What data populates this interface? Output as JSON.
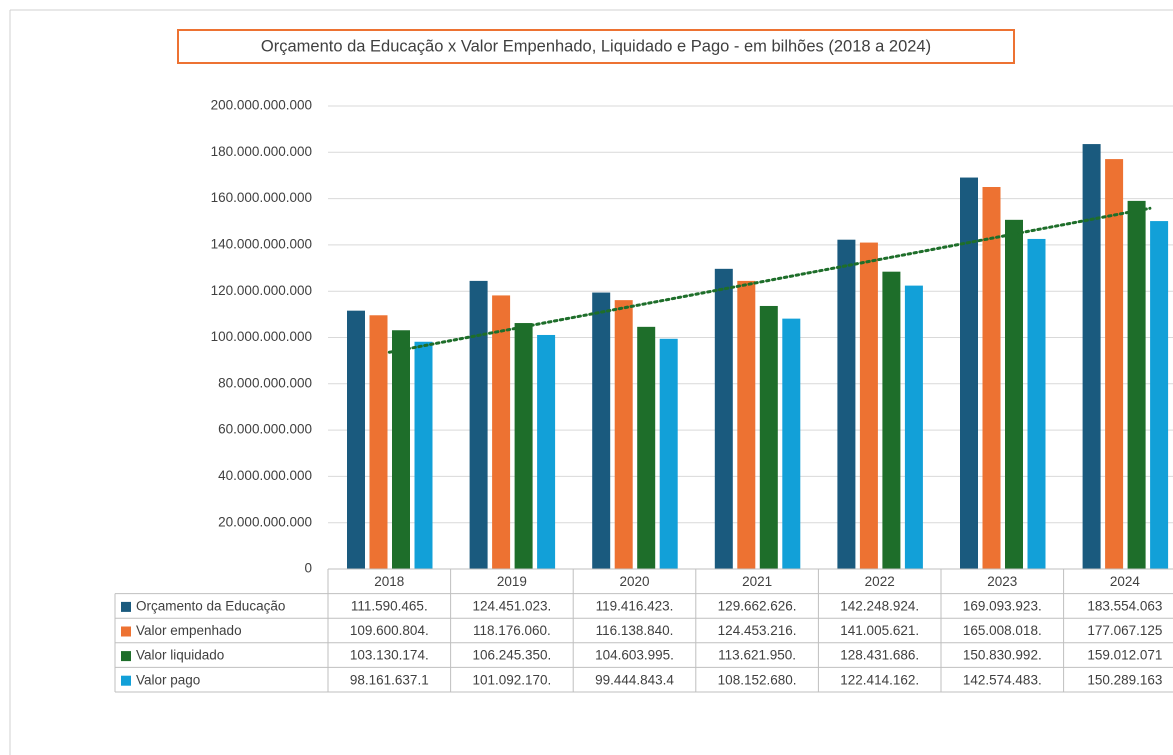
{
  "chart_data": {
    "type": "bar",
    "title": "Orçamento da Educação x Valor Empenhado, Liquidado e Pago - em bilhões (2018 a 2024)",
    "categories": [
      "2018",
      "2019",
      "2020",
      "2021",
      "2022",
      "2023",
      "2024"
    ],
    "series": [
      {
        "name": "Orçamento da Educação",
        "color": "#1a5a7e",
        "values": [
          111590465000,
          124451023000,
          119416423000,
          129662626000,
          142248924000,
          169093923000,
          183554063000
        ],
        "value_labels": [
          "111.590.465.",
          "124.451.023.",
          "119.416.423.",
          "129.662.626.",
          "142.248.924.",
          "169.093.923.",
          "183.554.063"
        ]
      },
      {
        "name": "Valor empenhado",
        "color": "#ed7232",
        "values": [
          109600804000,
          118176060000,
          116138840000,
          124453216000,
          141005621000,
          165008018000,
          177067125000
        ],
        "value_labels": [
          "109.600.804.",
          "118.176.060.",
          "116.138.840.",
          "124.453.216.",
          "141.005.621.",
          "165.008.018.",
          "177.067.125"
        ]
      },
      {
        "name": "Valor liquidado",
        "color": "#1e6e2a",
        "values": [
          103130174000,
          106245350000,
          104603995000,
          113621950000,
          128431686000,
          150830992000,
          159012071000
        ],
        "value_labels": [
          "103.130.174.",
          "106.245.350.",
          "104.603.995.",
          "113.621.950.",
          "128.431.686.",
          "150.830.992.",
          "159.012.071"
        ]
      },
      {
        "name": "Valor pago",
        "color": "#12a0d8",
        "values": [
          98161637100,
          101092170000,
          99444843400,
          108152680000,
          122414162000,
          142574483000,
          150289163000
        ],
        "value_labels": [
          "98.161.637.1",
          "101.092.170.",
          "99.444.843.4",
          "108.152.680.",
          "122.414.162.",
          "142.574.483.",
          "150.289.163"
        ]
      }
    ],
    "ylim": [
      0,
      200000000000
    ],
    "yticks": [
      0,
      {
        "value": 20000000000,
        "label": "20.000.000.000"
      },
      {
        "value": 40000000000,
        "label": "40.000.000.000"
      },
      {
        "value": 60000000000,
        "label": "60.000.000.000"
      },
      {
        "value": 80000000000,
        "label": "80.000.000.000"
      },
      {
        "value": 100000000000,
        "label": "100.000.000.000"
      },
      {
        "value": 120000000000,
        "label": "120.000.000.000"
      },
      {
        "value": 140000000000,
        "label": "140.000.000.000"
      },
      {
        "value": 160000000000,
        "label": "160.000.000.000"
      },
      {
        "value": 180000000000,
        "label": "180.000.000.000"
      },
      {
        "value": 200000000000,
        "label": "200.000.000.000"
      }
    ],
    "grid": true,
    "data_table": true,
    "trendline": {
      "series": "Valor liquidado",
      "color": "#1e6e2a",
      "style": "dotted"
    }
  }
}
